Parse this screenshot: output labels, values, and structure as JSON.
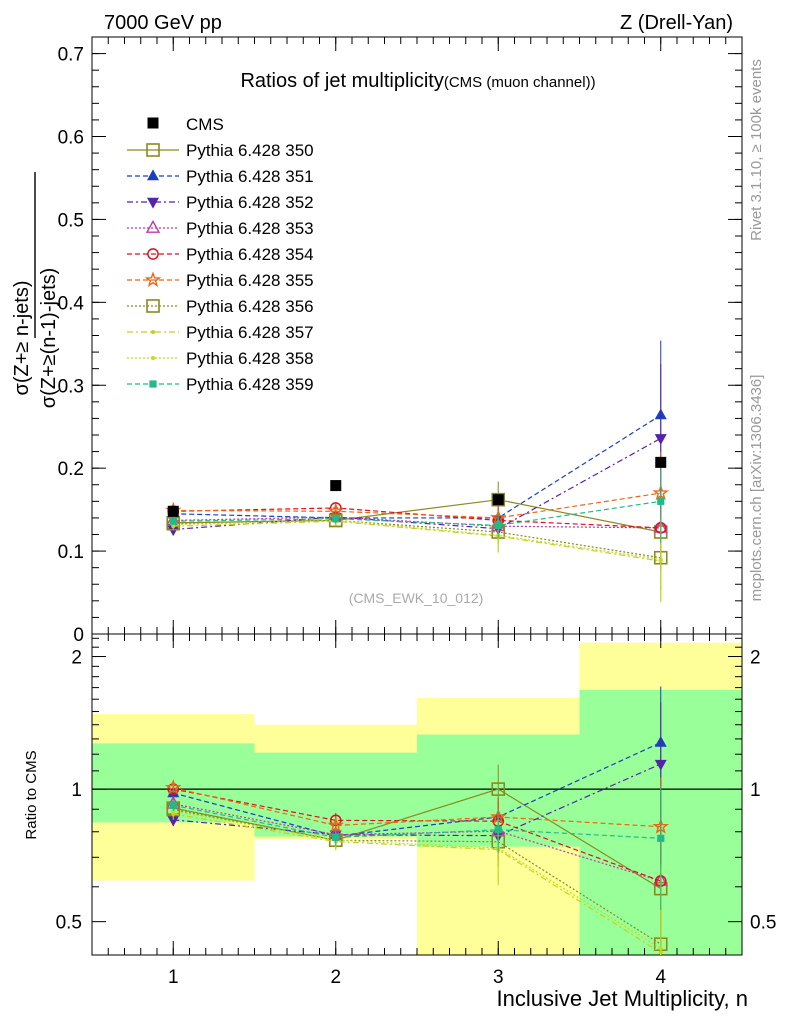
{
  "header": {
    "left": "7000 GeV pp",
    "right": "Z (Drell-Yan)"
  },
  "side_labels": {
    "rivet": "Rivet 3.1.10, ≥ 100k events",
    "mcplots": "mcplots.cern.ch [arXiv:1306.3436]"
  },
  "chart_data": {
    "type": "scatter",
    "title": "Ratios of jet multiplicity",
    "subtitle": "(CMS (muon channel))",
    "watermark": "(CMS_EWK_10_012)",
    "xlabel": "Inclusive Jet Multiplicity, n",
    "ylabel_num": "σ(Z+≥ n-jets)",
    "ylabel_den": "σ(Z+≥(n-1)-jets)",
    "ratio_ylabel": "Ratio to CMS",
    "x": [
      1,
      2,
      3,
      4
    ],
    "xlim": [
      0.5,
      4.5
    ],
    "ylim": [
      0,
      0.72
    ],
    "ratio_ylim": [
      0.42,
      2.25
    ],
    "x_ticks": [
      1,
      2,
      3,
      4
    ],
    "y_ticks": [
      0,
      0.1,
      0.2,
      0.3,
      0.4,
      0.5,
      0.6,
      0.7
    ],
    "y_tick_labels": [
      "0",
      "0.1",
      "0.2",
      "0.3",
      "0.4",
      "0.5",
      "0.6",
      "0.7"
    ],
    "ratio_ticks": [
      0.5,
      1,
      2
    ],
    "ratio_tick_labels": [
      "0.5",
      "1",
      "2"
    ],
    "legend_position": "top-left",
    "grid": false,
    "data": {
      "name": "CMS",
      "color": "#000000",
      "values": [
        0.148,
        0.179,
        0.162,
        0.207
      ],
      "band_inner": [
        [
          0.84,
          1.27
        ],
        [
          0.78,
          1.21
        ],
        [
          0.74,
          1.33
        ],
        [
          0.38,
          1.68
        ]
      ],
      "band_outer": [
        [
          0.62,
          1.48
        ],
        [
          0.77,
          1.4
        ],
        [
          0.3,
          1.61
        ],
        [
          0.3,
          2.15
        ]
      ]
    },
    "series": [
      {
        "name": "Pythia 6.428 350",
        "color": "#8a8a1e",
        "marker": "square-open",
        "dash": "",
        "values": [
          0.134,
          0.137,
          0.162,
          0.123
        ],
        "errors": [
          0.004,
          0.006,
          0.022,
          0.04
        ]
      },
      {
        "name": "Pythia 6.428 351",
        "color": "#1a3fbf",
        "marker": "triangle-up",
        "dash": "5,3",
        "values": [
          0.145,
          0.14,
          0.14,
          0.264
        ],
        "errors": [
          0.004,
          0.006,
          0.015,
          0.09
        ]
      },
      {
        "name": "Pythia 6.428 352",
        "color": "#5522aa",
        "marker": "triangle-down",
        "dash": "6,3,2,3",
        "values": [
          0.126,
          0.141,
          0.127,
          0.236
        ],
        "errors": [
          0.004,
          0.006,
          0.015,
          0.09
        ]
      },
      {
        "name": "Pythia 6.428 353",
        "color": "#cc33aa",
        "marker": "triangle-open",
        "dash": "2,2",
        "values": [
          0.137,
          0.141,
          0.13,
          0.128
        ],
        "errors": [
          0.004,
          0.006,
          0.015,
          0.05
        ]
      },
      {
        "name": "Pythia 6.428 354",
        "color": "#dd1122",
        "marker": "circle-open",
        "dash": "5,3",
        "values": [
          0.148,
          0.152,
          0.137,
          0.128
        ],
        "errors": [
          0.004,
          0.006,
          0.015,
          0.05
        ]
      },
      {
        "name": "Pythia 6.428 355",
        "color": "#ee6611",
        "marker": "star-open",
        "dash": "5,3",
        "values": [
          0.149,
          0.148,
          0.14,
          0.17
        ],
        "errors": [
          0.004,
          0.006,
          0.015,
          0.05
        ]
      },
      {
        "name": "Pythia 6.428 356",
        "color": "#8a8a1e",
        "marker": "square-open",
        "dash": "2,2",
        "values": [
          0.133,
          0.137,
          0.123,
          0.092
        ],
        "errors": [
          0.004,
          0.006,
          0.015,
          0.04
        ]
      },
      {
        "name": "Pythia 6.428 357",
        "color": "#cccc22",
        "marker": "dot",
        "dash": "6,3,2,3",
        "values": [
          0.13,
          0.136,
          0.118,
          0.088
        ],
        "errors": [
          0.004,
          0.006,
          0.02,
          0.05
        ]
      },
      {
        "name": "Pythia 6.428 358",
        "color": "#bbdd22",
        "marker": "dot",
        "dash": "2,2",
        "values": [
          0.132,
          0.137,
          0.119,
          0.09
        ],
        "errors": [
          0.004,
          0.006,
          0.02,
          0.05
        ]
      },
      {
        "name": "Pythia 6.428 359",
        "color": "#22bb88",
        "marker": "square-filled",
        "dash": "5,3",
        "values": [
          0.136,
          0.139,
          0.131,
          0.16
        ],
        "errors": [
          0.004,
          0.006,
          0.015,
          0.05
        ]
      }
    ]
  }
}
